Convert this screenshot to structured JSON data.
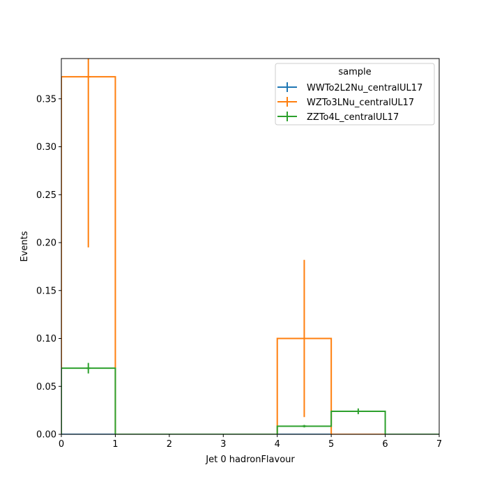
{
  "chart_data": {
    "type": "histogram-step",
    "xlabel": "Jet 0 hadronFlavour",
    "ylabel": "Events",
    "xlim": [
      0,
      7
    ],
    "ylim": [
      0,
      0.392
    ],
    "xticks": [
      "0",
      "1",
      "2",
      "3",
      "4",
      "5",
      "6",
      "7"
    ],
    "yticks": [
      "0.00",
      "0.05",
      "0.10",
      "0.15",
      "0.20",
      "0.25",
      "0.30",
      "0.35"
    ],
    "legend": {
      "title": "sample",
      "location": "upper right"
    },
    "bin_edges": [
      0,
      1,
      2,
      3,
      4,
      5,
      6,
      7
    ],
    "series": [
      {
        "name": "WWTo2L2Nu_centralUL17",
        "color": "#1f77b4",
        "values": [
          0,
          0,
          0,
          0,
          0,
          0,
          0
        ],
        "errors": [
          0,
          0,
          0,
          0,
          0,
          0,
          0
        ]
      },
      {
        "name": "WZTo3LNu_centralUL17",
        "color": "#ff7f0e",
        "values": [
          0.373,
          0,
          0,
          0,
          0.1,
          0,
          0
        ],
        "errors": [
          0.178,
          0,
          0,
          0,
          0.082,
          0,
          0
        ]
      },
      {
        "name": "ZZTo4L_centralUL17",
        "color": "#2ca02c",
        "values": [
          0.069,
          0,
          0,
          0,
          0.0085,
          0.024,
          0
        ],
        "errors": [
          0.0055,
          0,
          0,
          0,
          0.0013,
          0.003,
          0
        ]
      }
    ]
  }
}
